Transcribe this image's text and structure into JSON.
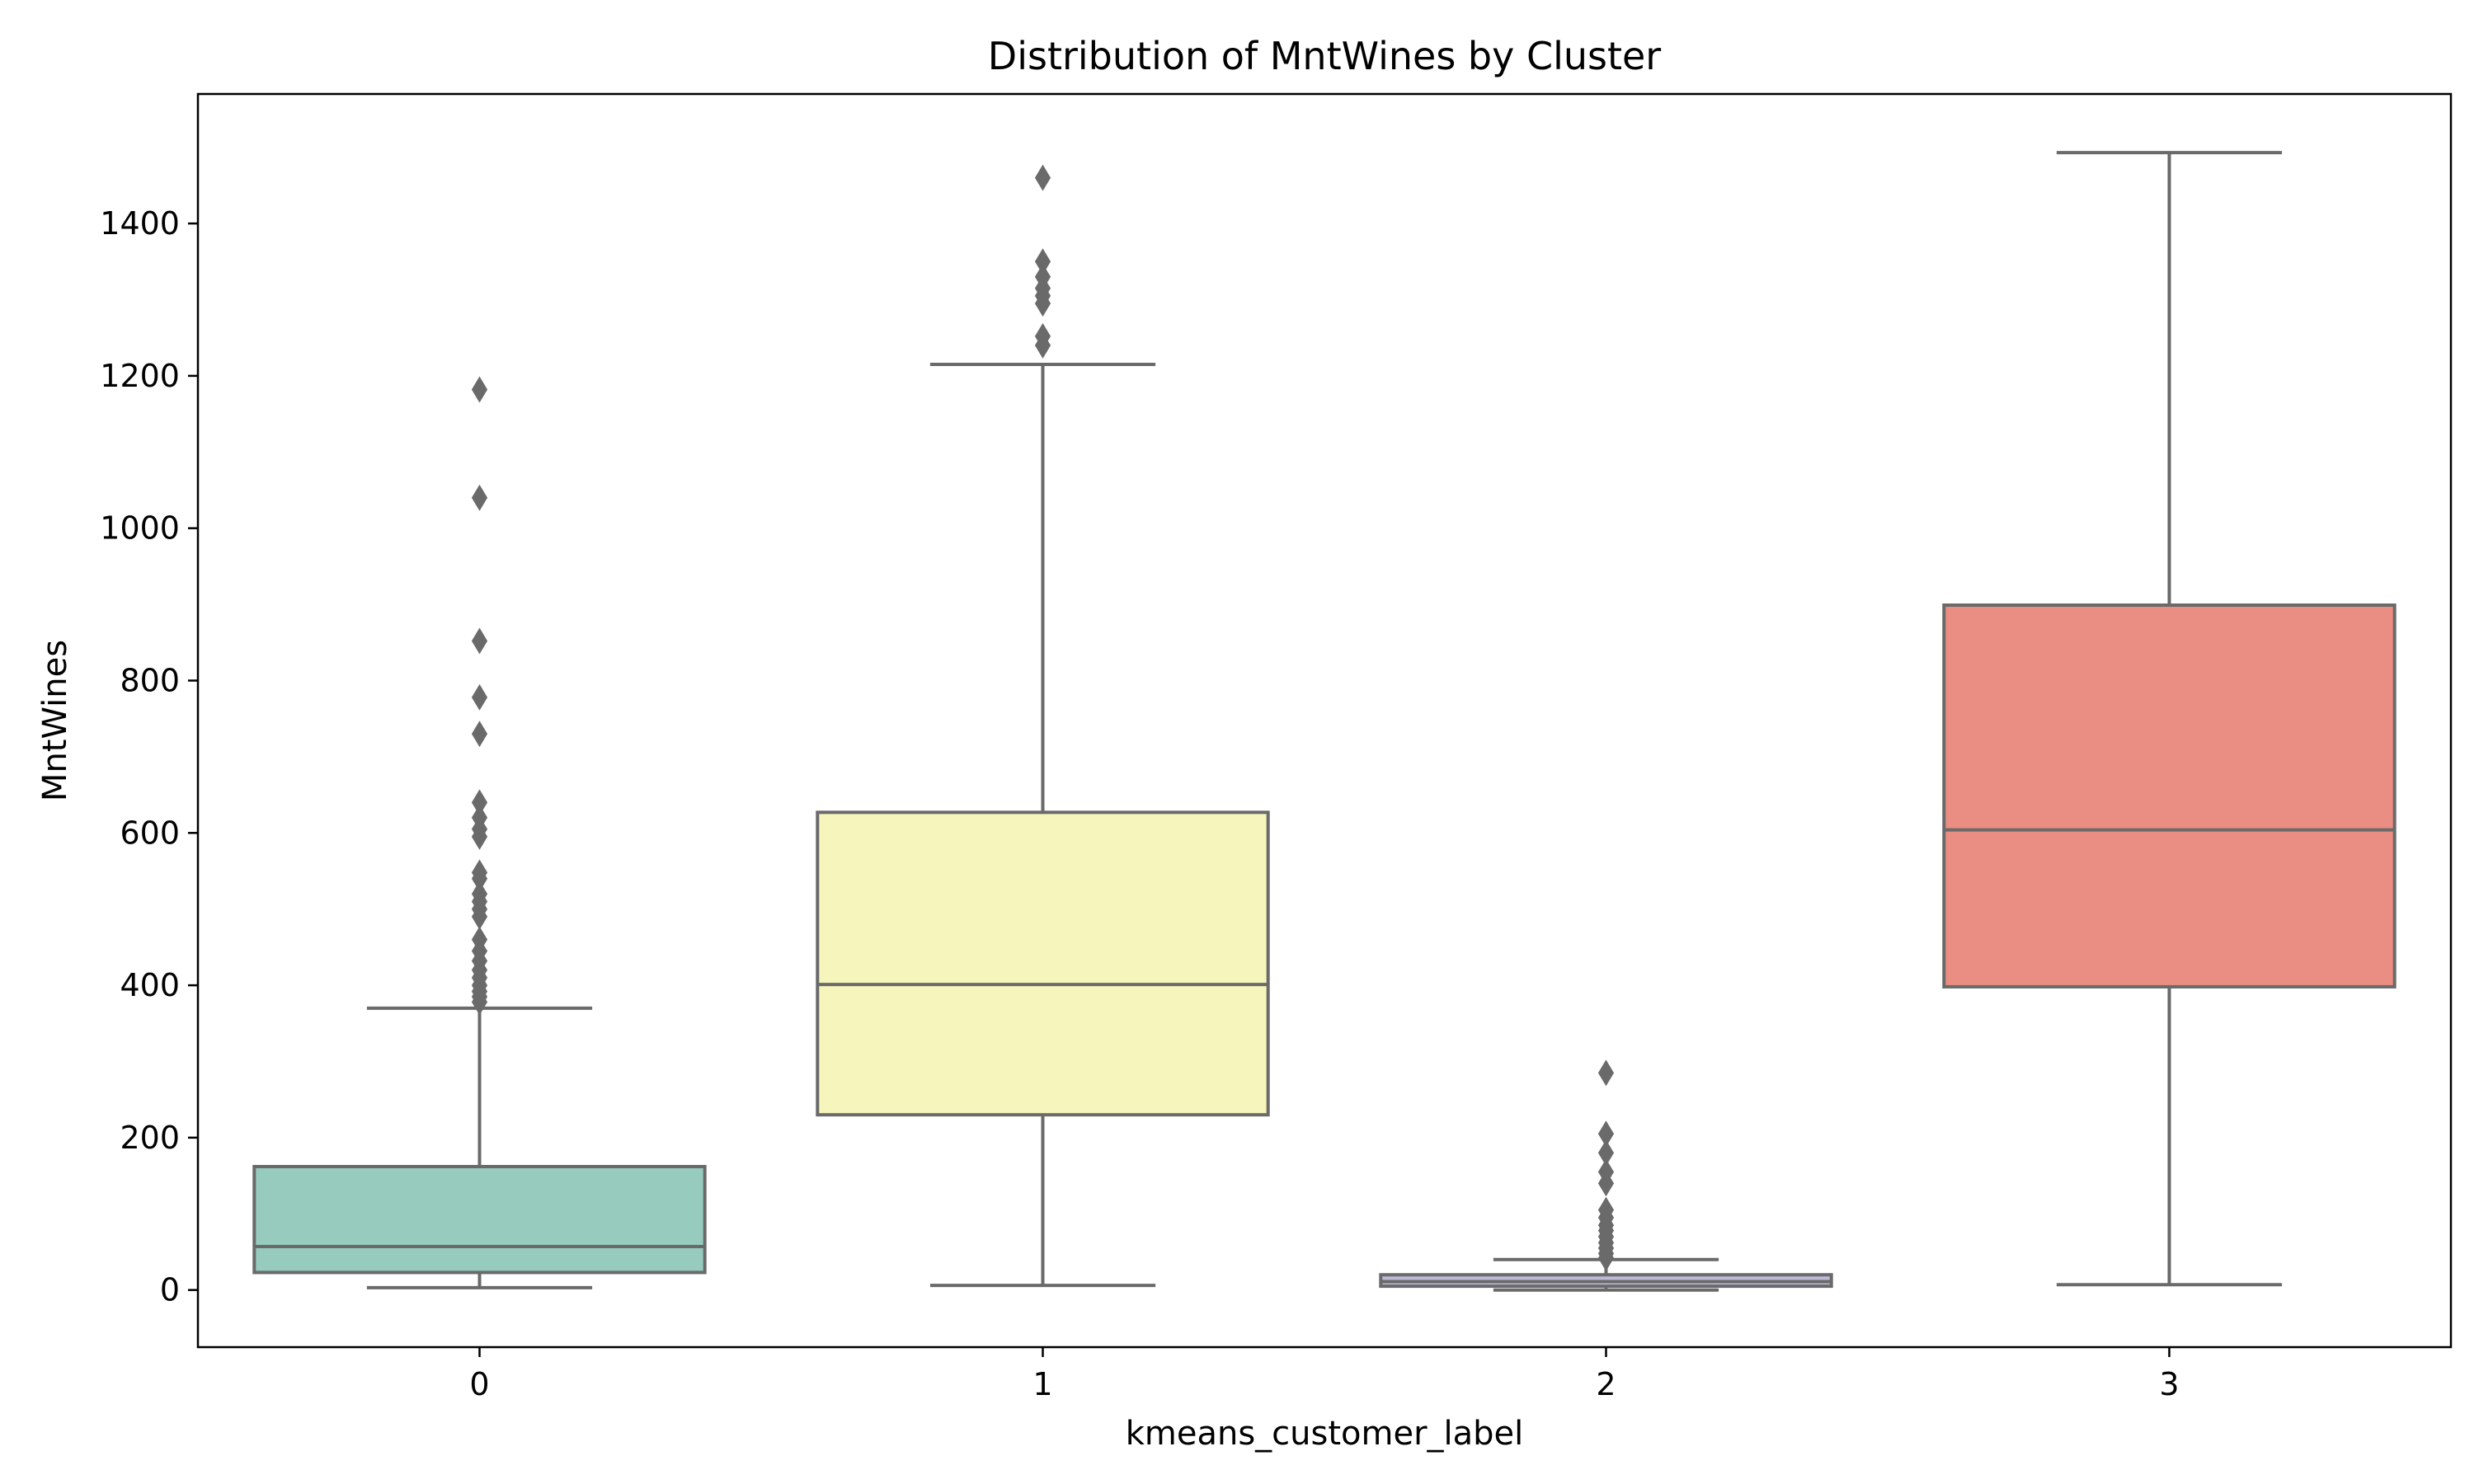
{
  "chart_data": {
    "type": "box",
    "title": "Distribution of MntWines by Cluster",
    "xlabel": "kmeans_customer_label",
    "ylabel": "MntWines",
    "ylim": [
      -75,
      1570
    ],
    "yticks": [
      0,
      200,
      400,
      600,
      800,
      1000,
      1200,
      1400
    ],
    "grid": false,
    "line_color": "#6a6a6a",
    "categories": [
      "0",
      "1",
      "2",
      "3"
    ],
    "boxes": [
      {
        "category": "0",
        "color": "#96cbbe",
        "whisker_low": 3,
        "q1": 23,
        "median": 57,
        "q3": 162,
        "whisker_high": 370,
        "outliers": [
          378,
          385,
          392,
          400,
          410,
          420,
          432,
          445,
          460,
          490,
          500,
          510,
          520,
          540,
          548,
          595,
          605,
          620,
          640,
          730,
          778,
          852,
          1040,
          1182
        ]
      },
      {
        "category": "1",
        "color": "#f6f5bb",
        "whisker_low": 6,
        "q1": 230,
        "median": 401,
        "q3": 627,
        "whisker_high": 1215,
        "outliers": [
          1240,
          1252,
          1295,
          1305,
          1315,
          1330,
          1350,
          1460
        ]
      },
      {
        "category": "2",
        "color": "#bdbad6",
        "whisker_low": 0,
        "q1": 5,
        "median": 11,
        "q3": 20,
        "whisker_high": 40,
        "outliers": [
          42,
          48,
          55,
          62,
          70,
          78,
          85,
          95,
          105,
          140,
          155,
          180,
          205,
          285
        ]
      },
      {
        "category": "3",
        "color": "#ea8d82",
        "whisker_low": 7,
        "q1": 398,
        "median": 604,
        "q3": 899,
        "whisker_high": 1493,
        "outliers": []
      }
    ]
  }
}
